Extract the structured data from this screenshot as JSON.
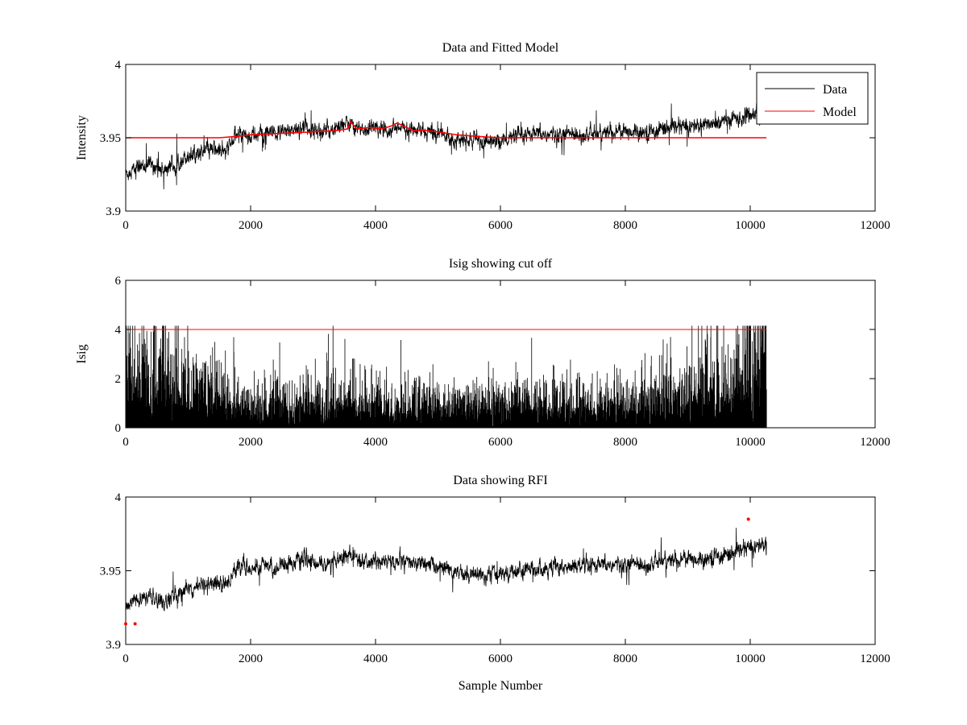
{
  "chart_data": [
    {
      "type": "line",
      "title": "Data and Fitted Model",
      "xlabel": "",
      "ylabel": "Intensity",
      "xlim": [
        0,
        12000
      ],
      "ylim": [
        3.9,
        4.0
      ],
      "xticks": [
        "0",
        "2000",
        "4000",
        "6000",
        "8000",
        "10000",
        "12000"
      ],
      "yticks": [
        "3.9",
        "3.95",
        "4"
      ],
      "grid": false,
      "legend": {
        "placement": "top-right",
        "entries": [
          "Data",
          "Model"
        ]
      },
      "series": [
        {
          "name": "Data",
          "color": "#000000",
          "style": "noisy",
          "x": [
            0,
            200,
            400,
            600,
            800,
            1000,
            1200,
            1400,
            1600,
            1800,
            2000,
            2200,
            2400,
            2600,
            2800,
            3000,
            3200,
            3400,
            3600,
            3800,
            4000,
            4200,
            4400,
            4600,
            4800,
            5000,
            5200,
            5400,
            5600,
            5800,
            6000,
            6200,
            6400,
            6600,
            6800,
            7000,
            7200,
            7400,
            7600,
            7800,
            8000,
            8200,
            8400,
            8600,
            8800,
            9000,
            9200,
            9400,
            9600,
            9800,
            10000,
            10260
          ],
          "y": [
            3.925,
            3.93,
            3.932,
            3.928,
            3.933,
            3.938,
            3.94,
            3.942,
            3.94,
            3.953,
            3.951,
            3.953,
            3.952,
            3.955,
            3.957,
            3.956,
            3.954,
            3.958,
            3.96,
            3.955,
            3.957,
            3.956,
            3.956,
            3.955,
            3.954,
            3.953,
            3.95,
            3.948,
            3.948,
            3.947,
            3.948,
            3.95,
            3.951,
            3.952,
            3.952,
            3.952,
            3.953,
            3.952,
            3.953,
            3.954,
            3.954,
            3.955,
            3.954,
            3.957,
            3.957,
            3.958,
            3.958,
            3.96,
            3.961,
            3.963,
            3.966,
            3.968
          ],
          "noise_amplitude": 0.007
        },
        {
          "name": "Model",
          "color": "#ff0000",
          "style": "line",
          "x": [
            0,
            1500,
            1800,
            2000,
            2500,
            3000,
            3400,
            3550,
            3600,
            3700,
            3900,
            4100,
            4250,
            4350,
            4450,
            4600,
            4800,
            5000,
            5300,
            5600,
            6000,
            10260
          ],
          "y": [
            3.95,
            3.95,
            3.951,
            3.952,
            3.953,
            3.954,
            3.955,
            3.956,
            3.961,
            3.956,
            3.957,
            3.956,
            3.958,
            3.96,
            3.958,
            3.955,
            3.955,
            3.954,
            3.952,
            3.951,
            3.95,
            3.95
          ]
        }
      ]
    },
    {
      "type": "line",
      "title": "Isig showing cut off",
      "xlabel": "",
      "ylabel": "Isig",
      "xlim": [
        0,
        12000
      ],
      "ylim": [
        0,
        6
      ],
      "xticks": [
        "0",
        "2000",
        "4000",
        "6000",
        "8000",
        "10000",
        "12000"
      ],
      "yticks": [
        "0",
        "2",
        "4",
        "6"
      ],
      "grid": false,
      "series": [
        {
          "color": "#000000",
          "style": "noisy-bars",
          "x": [
            0,
            200,
            400,
            600,
            800,
            1000,
            1200,
            1400,
            1600,
            1800,
            2000,
            2400,
            2800,
            3200,
            3600,
            4000,
            4400,
            4800,
            5200,
            5600,
            6000,
            6400,
            6800,
            7200,
            7600,
            8000,
            8400,
            8800,
            9200,
            9600,
            9800,
            10000,
            10260
          ],
          "y": [
            2.4,
            2.0,
            1.5,
            2.0,
            1.6,
            1.3,
            1.3,
            1.2,
            1.1,
            0.9,
            0.9,
            0.8,
            0.8,
            0.8,
            0.9,
            0.8,
            0.8,
            0.8,
            0.8,
            0.8,
            0.8,
            0.8,
            0.8,
            0.8,
            0.8,
            0.9,
            1.0,
            1.1,
            1.2,
            1.4,
            1.7,
            2.2,
            2.4
          ]
        },
        {
          "color": "#ff0000",
          "style": "line",
          "x": [
            0,
            10260
          ],
          "y": [
            4,
            4
          ]
        }
      ]
    },
    {
      "type": "line",
      "title": "Data showing RFI",
      "xlabel": "Sample Number",
      "ylabel": "",
      "xlim": [
        0,
        12000
      ],
      "ylim": [
        3.9,
        4.0
      ],
      "xticks": [
        "0",
        "2000",
        "4000",
        "6000",
        "8000",
        "10000",
        "12000"
      ],
      "yticks": [
        "3.9",
        "3.95",
        "4"
      ],
      "grid": false,
      "series": [
        {
          "color": "#000000",
          "style": "noisy",
          "x": [
            0,
            200,
            400,
            600,
            800,
            1000,
            1200,
            1400,
            1600,
            1800,
            2000,
            2200,
            2400,
            2600,
            2800,
            3000,
            3200,
            3400,
            3600,
            3800,
            4000,
            4200,
            4400,
            4600,
            4800,
            5000,
            5200,
            5400,
            5600,
            5800,
            6000,
            6200,
            6400,
            6600,
            6800,
            7000,
            7200,
            7400,
            7600,
            7800,
            8000,
            8200,
            8400,
            8600,
            8800,
            9000,
            9200,
            9400,
            9600,
            9800,
            10000,
            10260
          ],
          "y": [
            3.925,
            3.93,
            3.932,
            3.928,
            3.933,
            3.938,
            3.94,
            3.942,
            3.94,
            3.953,
            3.951,
            3.953,
            3.952,
            3.955,
            3.957,
            3.956,
            3.954,
            3.958,
            3.96,
            3.955,
            3.957,
            3.956,
            3.956,
            3.955,
            3.954,
            3.953,
            3.95,
            3.948,
            3.948,
            3.947,
            3.948,
            3.95,
            3.951,
            3.952,
            3.952,
            3.952,
            3.953,
            3.952,
            3.953,
            3.954,
            3.954,
            3.955,
            3.954,
            3.957,
            3.957,
            3.958,
            3.958,
            3.96,
            3.961,
            3.963,
            3.966,
            3.968
          ],
          "noise_amplitude": 0.007
        },
        {
          "color": "#ff0000",
          "style": "markers",
          "x": [
            0,
            150,
            9970
          ],
          "y": [
            3.914,
            3.914,
            3.985
          ]
        }
      ]
    }
  ]
}
